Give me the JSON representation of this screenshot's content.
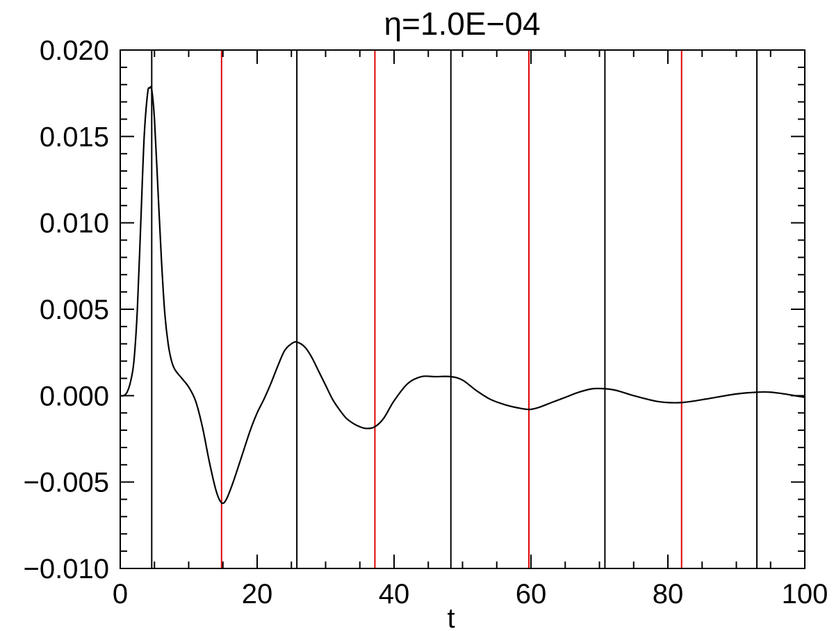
{
  "chart_data": {
    "type": "line",
    "title": "η=1.0E−04",
    "xlabel": "t",
    "ylabel": "",
    "xlim": [
      0,
      100
    ],
    "ylim": [
      -0.01,
      0.02
    ],
    "x_ticks": [
      0,
      20,
      40,
      60,
      80,
      100
    ],
    "x_tick_labels": [
      "0",
      "20",
      "40",
      "60",
      "80",
      "100"
    ],
    "y_ticks": [
      -0.01,
      -0.005,
      0.0,
      0.005,
      0.01,
      0.015,
      0.02
    ],
    "y_tick_labels": [
      "−0.010",
      "−0.005",
      "0.000",
      "0.005",
      "0.010",
      "0.015",
      "0.020"
    ],
    "grid": false,
    "colors": {
      "curve": "#000000",
      "black_lines": "#000000",
      "red_lines": "#e00000",
      "frame": "#000000"
    },
    "vertical_lines": {
      "black": [
        4.6,
        25.8,
        48.3,
        70.8,
        93.0
      ],
      "red": [
        14.8,
        37.2,
        59.7,
        82.0
      ]
    },
    "series": [
      {
        "x": [
          0,
          0.5,
          1.0,
          1.5,
          2.0,
          2.5,
          3.0,
          3.5,
          4.0,
          4.3,
          4.6,
          5.0,
          5.5,
          6.0,
          6.5,
          7.0,
          7.5,
          8.0,
          9.0,
          10.0,
          11.0,
          12.0,
          13.0,
          14.0,
          14.8,
          15.5,
          16.5,
          18.0,
          19.0,
          20.0,
          21.0,
          22.0,
          23.0,
          24.0,
          25.0,
          25.8,
          27.0,
          28.0,
          29.0,
          30.0,
          31.0,
          32.0,
          33.0,
          34.0,
          35.0,
          36.0,
          37.2,
          38.5,
          40.0,
          42.0,
          44.0,
          46.0,
          48.3,
          50.0,
          52.0,
          54.0,
          56.0,
          58.0,
          59.7,
          61.0,
          63.0,
          65.0,
          67.0,
          69.0,
          70.8,
          72.5,
          75.0,
          78.0,
          80.0,
          82.0,
          84.0,
          87.0,
          90.0,
          93.0,
          95.0,
          97.0,
          100.0
        ],
        "y": [
          0.0,
          0.0,
          0.0002,
          0.0008,
          0.002,
          0.005,
          0.01,
          0.015,
          0.0175,
          0.0178,
          0.0177,
          0.016,
          0.012,
          0.008,
          0.0048,
          0.003,
          0.002,
          0.0015,
          0.001,
          0.0005,
          -0.0003,
          -0.0018,
          -0.0038,
          -0.0055,
          -0.0062,
          -0.006,
          -0.005,
          -0.0032,
          -0.002,
          -0.001,
          -0.0002,
          0.0007,
          0.0017,
          0.0026,
          0.003,
          0.0031,
          0.0028,
          0.0022,
          0.0014,
          0.0006,
          -0.0002,
          -0.0008,
          -0.0013,
          -0.0016,
          -0.0018,
          -0.0019,
          -0.0018,
          -0.0013,
          -0.0003,
          0.0007,
          0.0011,
          0.0011,
          0.0011,
          0.0009,
          0.0003,
          -0.0002,
          -0.0005,
          -0.0007,
          -0.0008,
          -0.0007,
          -0.0004,
          -0.0001,
          0.0002,
          0.0004,
          0.0004,
          0.0003,
          0.0,
          -0.0003,
          -0.0004,
          -0.0004,
          -0.0003,
          -0.0001,
          0.0001,
          0.0002,
          0.0002,
          0.0001,
          -0.0001
        ]
      }
    ]
  }
}
